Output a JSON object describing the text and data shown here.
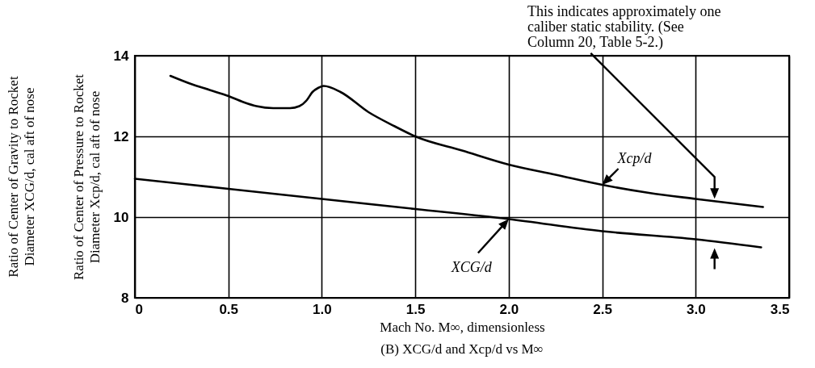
{
  "chart_data": {
    "type": "line",
    "title": "(B) XCG/d and Xcp/d vs M∞",
    "xlabel": "Mach No. M∞, dimensionless",
    "ylabel": "Ratio of Center of Pressure to Rocket Diameter Xcp/d, cal aft of nose",
    "annotations": [
      "Ratio of Center of Gravity to Rocket Diameter XCG/d, cal aft of nose",
      "This indicates approximately one caliber static stability. (See Column 20, Table 5-2.)"
    ],
    "xlim": [
      0,
      3.5
    ],
    "xticks": [
      0,
      0.5,
      {
        "value": 1,
        "label": "1.0"
      },
      1.5,
      {
        "value": 2,
        "label": "2.0"
      },
      2.5,
      {
        "value": 3,
        "label": "3.0"
      },
      3.5
    ],
    "ylim": [
      8,
      14
    ],
    "yticks": [
      8,
      10,
      12,
      14
    ],
    "grid": true,
    "series": [
      {
        "name": "Xcp/d",
        "color": "#000000",
        "x": [
          0.19,
          0.3,
          0.4,
          0.5,
          0.58,
          0.65,
          0.74,
          0.83,
          0.88,
          0.92,
          0.95,
          0.98,
          1.01,
          1.1,
          1.25,
          1.39,
          1.5,
          1.75,
          2.0,
          2.25,
          2.5,
          2.75,
          3.0,
          3.36
        ],
        "values": [
          13.5,
          13.3,
          13.15,
          13.0,
          12.85,
          12.75,
          12.7,
          12.7,
          12.75,
          12.9,
          13.1,
          13.2,
          13.25,
          13.1,
          12.6,
          12.25,
          12.0,
          11.65,
          11.3,
          11.05,
          10.8,
          10.6,
          10.45,
          10.25
        ]
      },
      {
        "name": "XCG/d",
        "color": "#000000",
        "x": [
          0,
          0.5,
          1.0,
          1.5,
          2.0,
          2.5,
          3.0,
          3.35
        ],
        "values": [
          10.95,
          10.7,
          10.45,
          10.2,
          9.95,
          9.65,
          9.45,
          9.25
        ]
      }
    ]
  }
}
